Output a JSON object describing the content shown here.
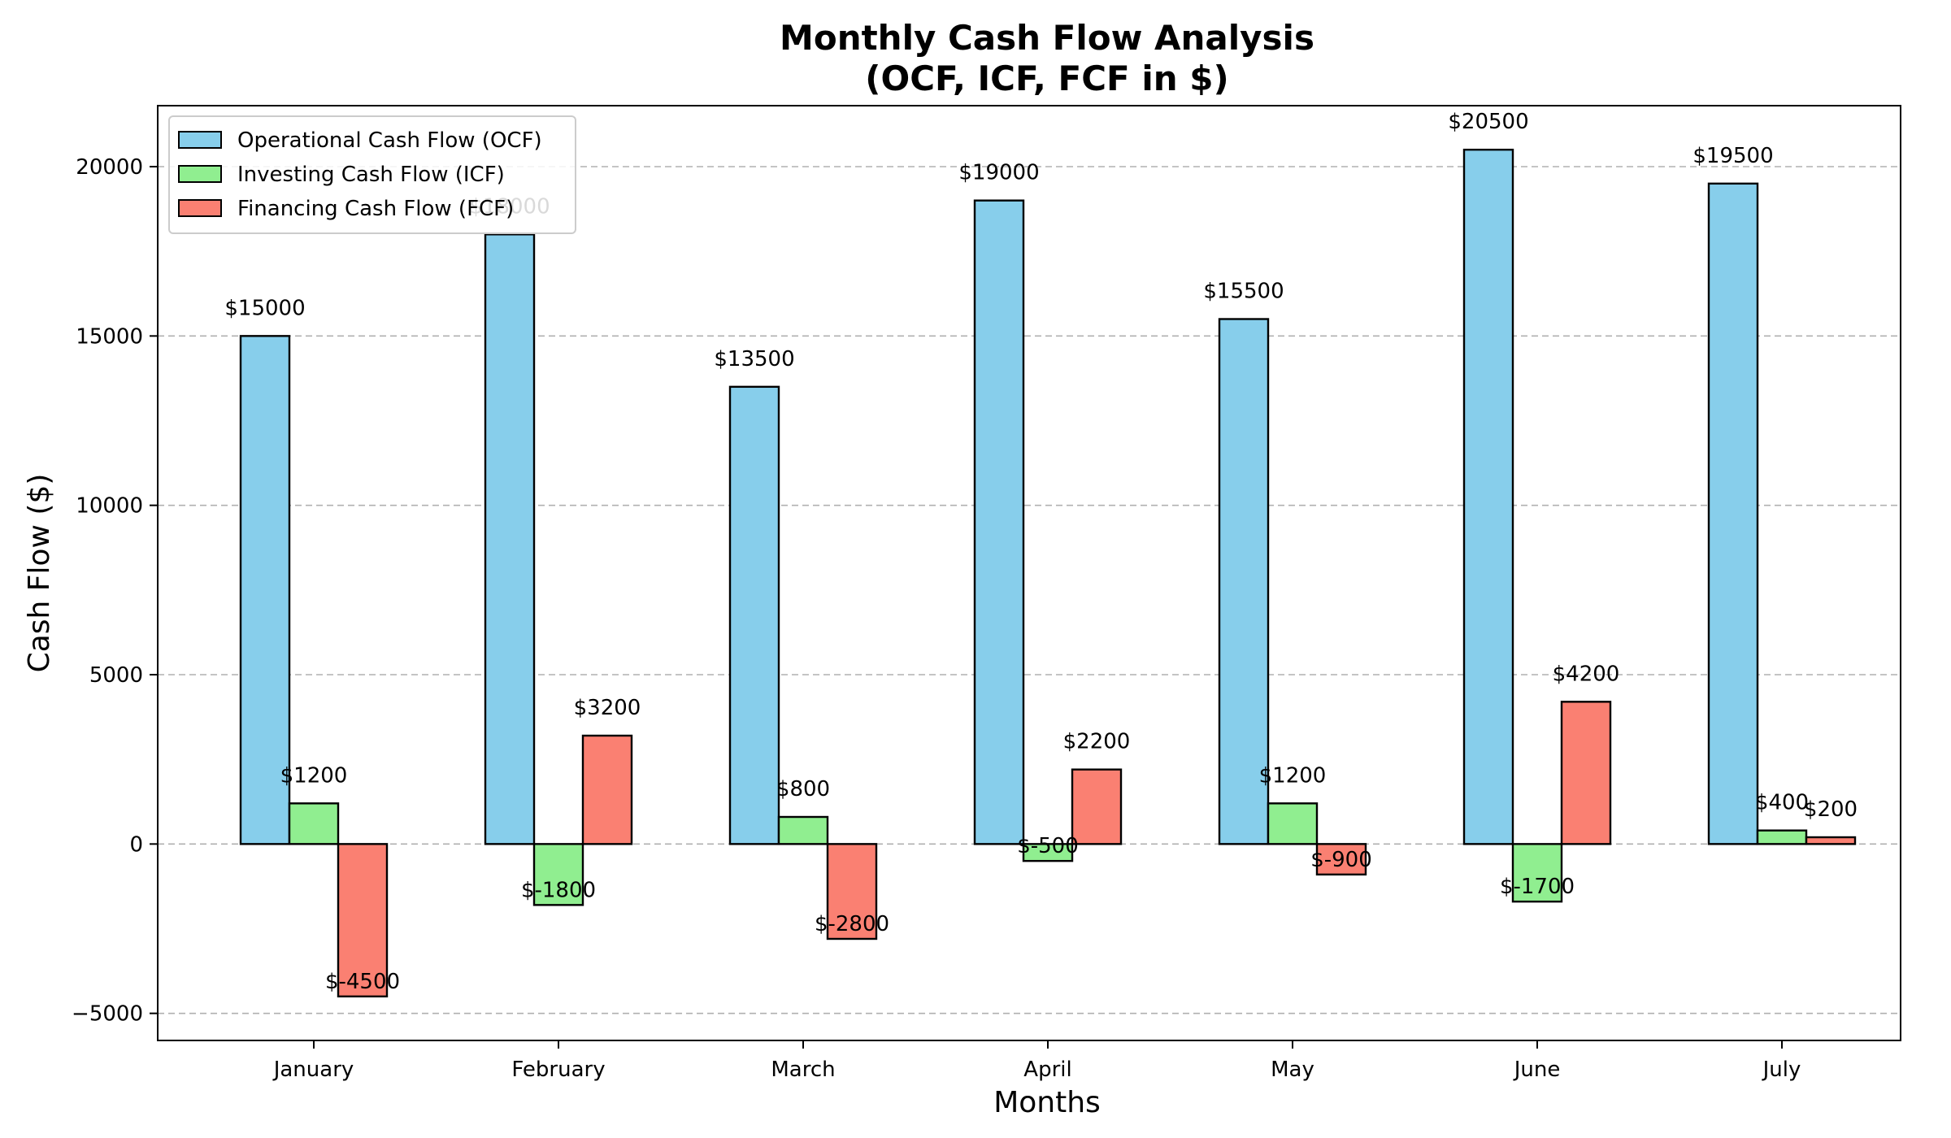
{
  "chart_data": {
    "type": "bar",
    "title": "Monthly Cash Flow Analysis",
    "subtitle": "(OCF, ICF, FCF in $)",
    "xlabel": "Months",
    "ylabel": "Cash Flow ($)",
    "categories": [
      "January",
      "February",
      "March",
      "April",
      "May",
      "June",
      "July"
    ],
    "series": [
      {
        "name": "Operational Cash Flow (OCF)",
        "color": "#87ceeb",
        "values": [
          15000,
          18000,
          13500,
          19000,
          15500,
          20500,
          19500
        ],
        "labels": [
          "$15000",
          "$18000",
          "$13500",
          "$19000",
          "$15500",
          "$20500",
          "$19500"
        ]
      },
      {
        "name": "Investing Cash Flow (ICF)",
        "color": "#90ee90",
        "values": [
          1200,
          -1800,
          800,
          -500,
          1200,
          -1700,
          400
        ],
        "labels": [
          "$1200",
          "$-1800",
          "$800",
          "$-500",
          "$1200",
          "$-1700",
          "$400"
        ]
      },
      {
        "name": "Financing Cash Flow (FCF)",
        "color": "#fa8072",
        "values": [
          -4500,
          3200,
          -2800,
          2200,
          -900,
          4200,
          200
        ],
        "labels": [
          "$-4500",
          "$3200",
          "$-2800",
          "$2200",
          "$-900",
          "$4200",
          "$200"
        ]
      }
    ],
    "yticks": [
      -5000,
      0,
      5000,
      10000,
      15000,
      20000
    ],
    "ytick_labels": [
      "−5000",
      "0",
      "5000",
      "10000",
      "15000",
      "20000"
    ],
    "ylim": [
      -5800,
      21800
    ],
    "grid": "y-dashed",
    "legend_position": "top-left"
  }
}
